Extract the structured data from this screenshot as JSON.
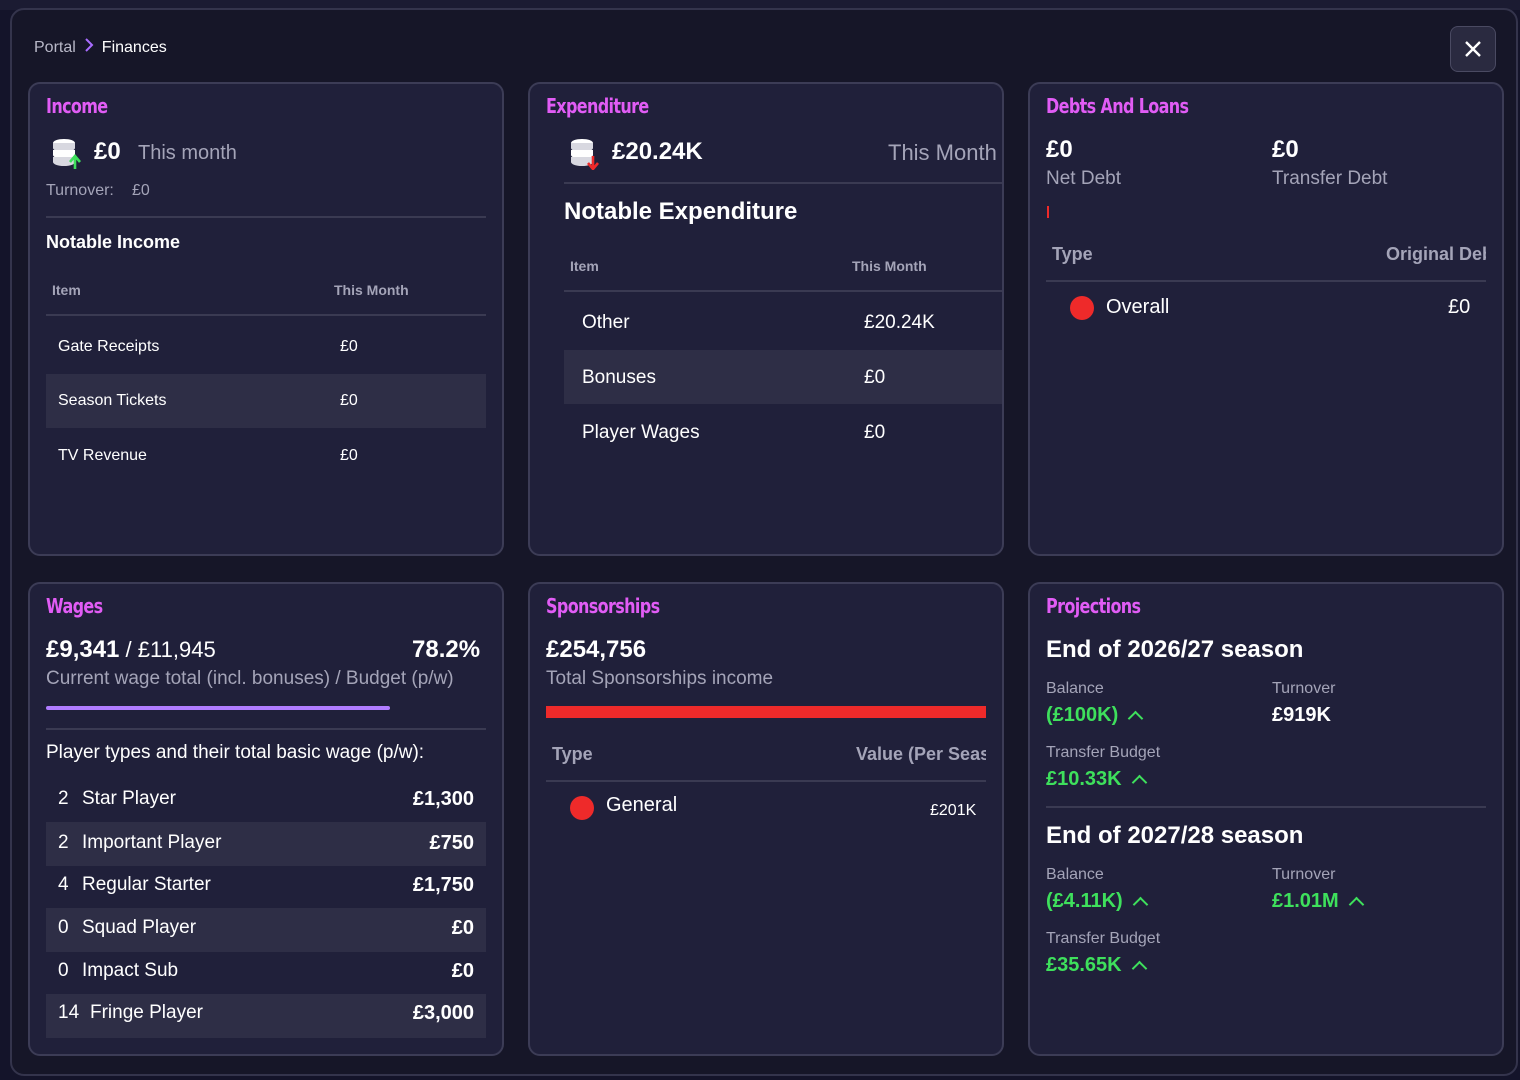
{
  "breadcrumb": {
    "root": "Portal",
    "current": "Finances"
  },
  "income": {
    "title": "Income",
    "amount": "£0",
    "period": "This month",
    "turnover_label": "Turnover:",
    "turnover_value": "£0",
    "notable_title": "Notable Income",
    "col_item": "Item",
    "col_month": "This Month",
    "rows": [
      {
        "item": "Gate Receipts",
        "value": "£0"
      },
      {
        "item": "Season Tickets",
        "value": "£0"
      },
      {
        "item": "TV Revenue",
        "value": "£0"
      }
    ]
  },
  "expenditure": {
    "title": "Expenditure",
    "amount": "£20.24K",
    "period": "This Month",
    "notable_title": "Notable Expenditure",
    "col_item": "Item",
    "col_month": "This Month",
    "rows": [
      {
        "item": "Other",
        "value": "£20.24K"
      },
      {
        "item": "Bonuses",
        "value": "£0"
      },
      {
        "item": "Player Wages",
        "value": "£0"
      }
    ]
  },
  "debts": {
    "title": "Debts And Loans",
    "net_debt_value": "£0",
    "net_debt_label": "Net Debt",
    "transfer_debt_value": "£0",
    "transfer_debt_label": "Transfer Debt",
    "col_type": "Type",
    "col_original": "Original Debt",
    "rows": [
      {
        "type": "Overall",
        "value": "£0",
        "dot_color": "#ee2a2a"
      }
    ]
  },
  "wages": {
    "title": "Wages",
    "current": "£9,341",
    "separator": "/",
    "budget": "£11,945",
    "percent": "78.2%",
    "percent_fraction": 0.782,
    "caption": "Current wage total (incl. bonuses) / Budget (p/w)",
    "types_heading": "Player types and their total basic wage (p/w):",
    "rows": [
      {
        "count": "2",
        "type": "Star Player",
        "value": "£1,300"
      },
      {
        "count": "2",
        "type": "Important Player",
        "value": "£750"
      },
      {
        "count": "4",
        "type": "Regular Starter",
        "value": "£1,750"
      },
      {
        "count": "0",
        "type": "Squad Player",
        "value": "£0"
      },
      {
        "count": "0",
        "type": "Impact Sub",
        "value": "£0"
      },
      {
        "count": "14",
        "type": "Fringe Player",
        "value": "£3,000"
      }
    ]
  },
  "sponsorships": {
    "title": "Sponsorships",
    "amount": "£254,756",
    "caption": "Total Sponsorships income",
    "bar_color": "#ee2a2a",
    "col_type": "Type",
    "col_value": "Value (Per Season)",
    "rows": [
      {
        "type": "General",
        "value": "£201K",
        "dot_color": "#ee2a2a"
      }
    ]
  },
  "projections": {
    "title": "Projections",
    "seasons": [
      {
        "heading": "End of 2026/27 season",
        "balance_label": "Balance",
        "balance_value": "(£100K)",
        "turnover_label": "Turnover",
        "turnover_value": "£919K",
        "transfer_label": "Transfer Budget",
        "transfer_value": "£10.33K"
      },
      {
        "heading": "End of 2027/28 season",
        "balance_label": "Balance",
        "balance_value": "(£4.11K)",
        "turnover_label": "Turnover",
        "turnover_value": "£1.01M",
        "transfer_label": "Transfer Budget",
        "transfer_value": "£35.65K"
      }
    ]
  },
  "colors": {
    "accent_title": "#e15cf5",
    "positive": "#3ee05c",
    "negative": "#ee2a2a",
    "progress": "#b07cff"
  }
}
